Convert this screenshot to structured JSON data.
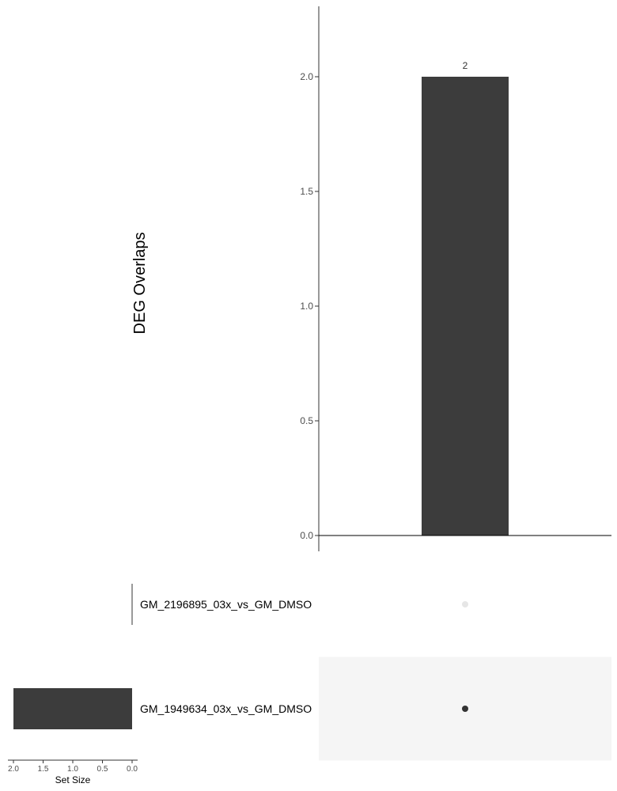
{
  "chart_data": [
    {
      "type": "bar",
      "ylabel": "DEG Overlaps",
      "ylim": [
        0,
        2.3
      ],
      "yticks": [
        "0.0",
        "0.5",
        "1.0",
        "1.5",
        "2.0"
      ],
      "ytick_values": [
        0,
        0.5,
        1.0,
        1.5,
        2.0
      ],
      "categories": [
        "GM_1949634_03x_vs_GM_DMSO"
      ],
      "values": [
        2
      ],
      "data_labels": [
        "2"
      ],
      "bar_color": "#3c3c3c"
    },
    {
      "type": "bar",
      "orientation": "horizontal",
      "xlabel": "Set Size",
      "xticks": [
        "2.0",
        "1.5",
        "1.0",
        "0.5",
        "0.0"
      ],
      "xtick_values": [
        2.0,
        1.5,
        1.0,
        0.5,
        0.0
      ],
      "xlim": [
        2.05,
        0
      ],
      "categories": [
        "GM_2196895_03x_vs_GM_DMSO",
        "GM_1949634_03x_vs_GM_DMSO"
      ],
      "values": [
        0,
        2
      ],
      "bar_color": "#3c3c3c"
    }
  ],
  "matrix": {
    "sets": [
      "GM_2196895_03x_vs_GM_DMSO",
      "GM_1949634_03x_vs_GM_DMSO"
    ],
    "intersections": [
      [
        false,
        true
      ]
    ],
    "active_color": "#333333",
    "inactive_color": "#e6e6e6",
    "shade_color": "#f5f5f5"
  }
}
